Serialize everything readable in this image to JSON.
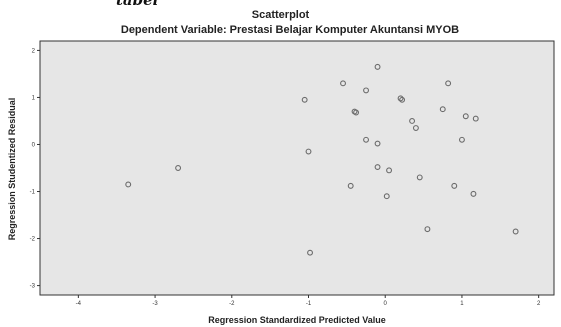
{
  "top_text": "tabel",
  "chart_data": {
    "type": "scatter",
    "title": "Scatterplot",
    "subtitle": "Dependent Variable: Prestasi Belajar Komputer Akuntansi MYOB",
    "xlabel": "Regression Standardized Predicted Value",
    "ylabel": "Regression Studentized Residual",
    "xlim": [
      -4.5,
      2.2
    ],
    "ylim": [
      -3.2,
      2.2
    ],
    "xticks": [
      -4,
      -3,
      -2,
      -1,
      0,
      1,
      2
    ],
    "yticks": [
      -3,
      -2,
      -1,
      0,
      1,
      2
    ],
    "grid": false,
    "background": "#e6e6e6",
    "marker_color": "#6b6b6b",
    "points": [
      {
        "x": -3.35,
        "y": -0.85
      },
      {
        "x": -2.7,
        "y": -0.5
      },
      {
        "x": -1.05,
        "y": 0.95
      },
      {
        "x": -1.0,
        "y": -0.15
      },
      {
        "x": -0.98,
        "y": -2.3
      },
      {
        "x": -0.55,
        "y": 1.3
      },
      {
        "x": -0.4,
        "y": 0.7
      },
      {
        "x": -0.38,
        "y": 0.68
      },
      {
        "x": -0.45,
        "y": -0.88
      },
      {
        "x": -0.25,
        "y": 1.15
      },
      {
        "x": -0.25,
        "y": 0.1
      },
      {
        "x": -0.1,
        "y": 1.65
      },
      {
        "x": -0.1,
        "y": 0.02
      },
      {
        "x": -0.1,
        "y": -0.48
      },
      {
        "x": 0.02,
        "y": -1.1
      },
      {
        "x": 0.05,
        "y": -0.55
      },
      {
        "x": 0.2,
        "y": 0.98
      },
      {
        "x": 0.22,
        "y": 0.95
      },
      {
        "x": 0.35,
        "y": 0.5
      },
      {
        "x": 0.4,
        "y": 0.35
      },
      {
        "x": 0.45,
        "y": -0.7
      },
      {
        "x": 0.55,
        "y": -1.8
      },
      {
        "x": 0.75,
        "y": 0.75
      },
      {
        "x": 0.82,
        "y": 1.3
      },
      {
        "x": 0.9,
        "y": -0.88
      },
      {
        "x": 1.0,
        "y": 0.1
      },
      {
        "x": 1.05,
        "y": 0.6
      },
      {
        "x": 1.15,
        "y": -1.05
      },
      {
        "x": 1.18,
        "y": 0.55
      },
      {
        "x": 1.7,
        "y": -1.85
      }
    ]
  }
}
